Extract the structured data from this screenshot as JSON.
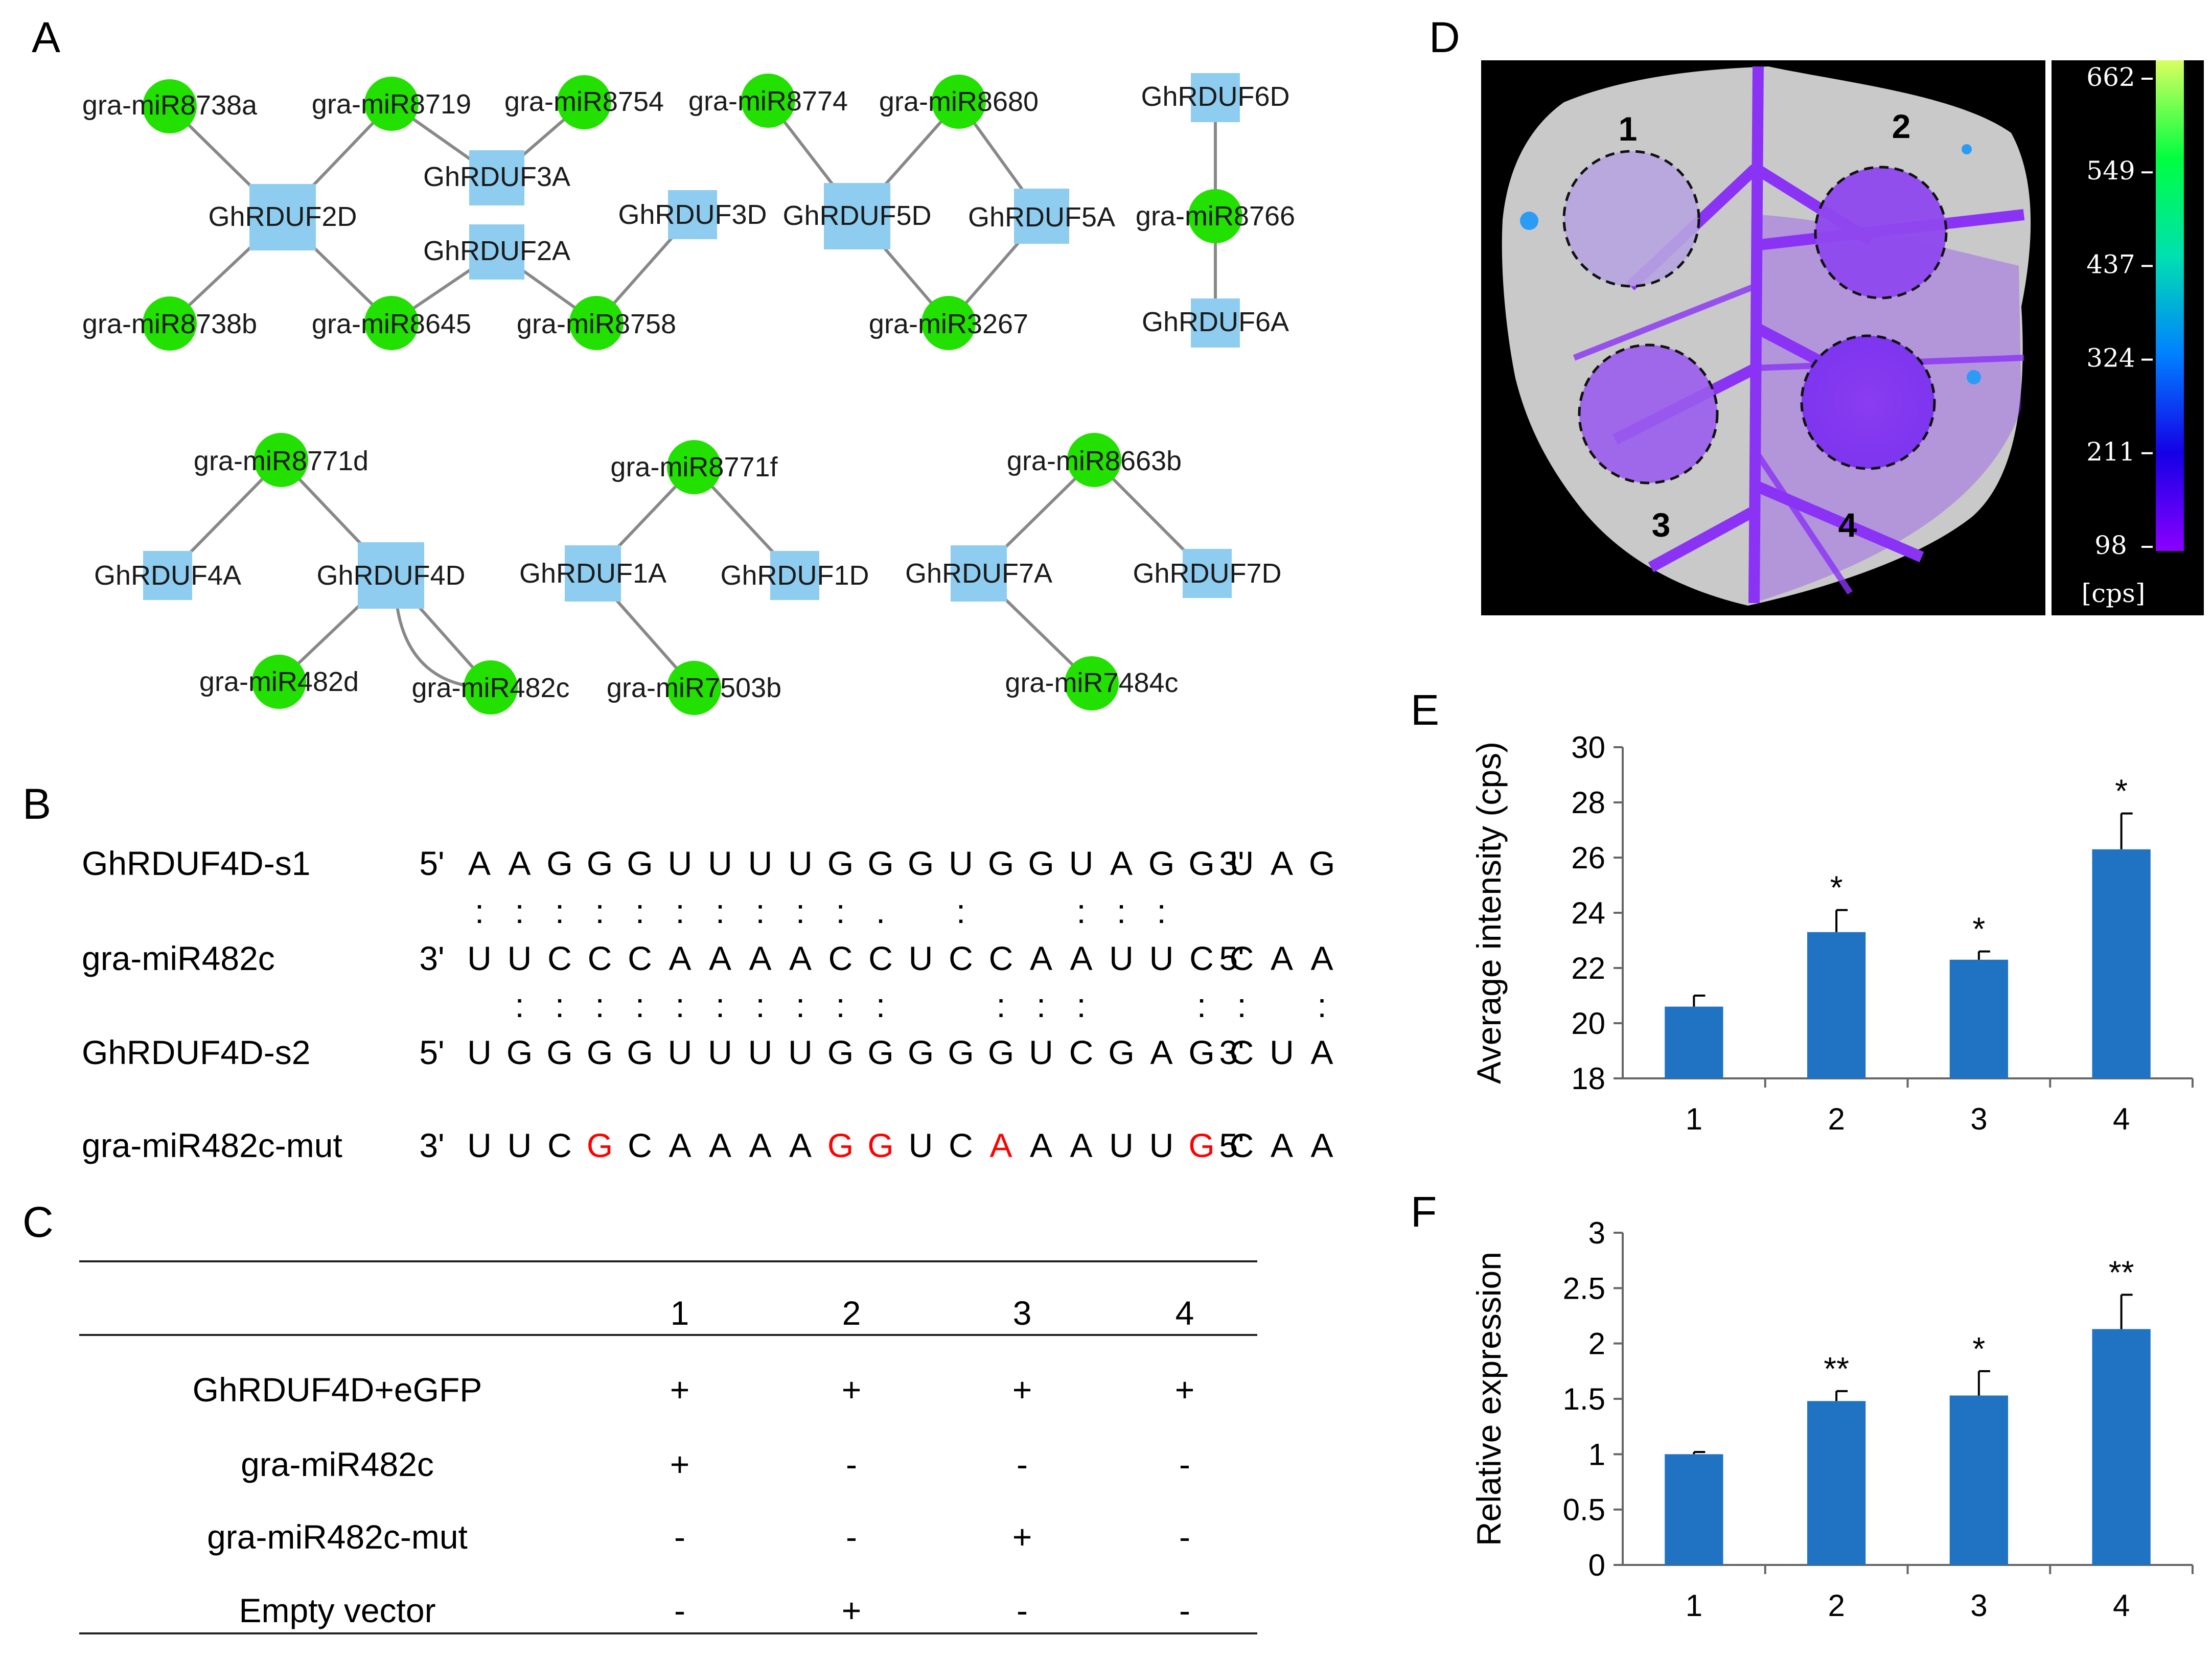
{
  "panel_labels": {
    "a": "A",
    "b": "B",
    "c": "C",
    "d": "D",
    "e": "E",
    "f": "F"
  },
  "network": {
    "colors": {
      "mirna_node": "#22e000",
      "gene_node": "#8ecdf0",
      "edge": "#888888"
    },
    "nodes": [
      {
        "id": "m8738a",
        "type": "mirna",
        "label": "gra-miR8738a"
      },
      {
        "id": "m8719",
        "type": "mirna",
        "label": "gra-miR8719"
      },
      {
        "id": "m8754",
        "type": "mirna",
        "label": "gra-miR8754"
      },
      {
        "id": "m8774",
        "type": "mirna",
        "label": "gra-miR8774"
      },
      {
        "id": "m8680",
        "type": "mirna",
        "label": "gra-miR8680"
      },
      {
        "id": "g6D",
        "type": "gene",
        "label": "GhRDUF6D"
      },
      {
        "id": "g2D",
        "type": "gene",
        "label": "GhRDUF2D"
      },
      {
        "id": "g3A",
        "type": "gene",
        "label": "GhRDUF3A"
      },
      {
        "id": "g2A",
        "type": "gene",
        "label": "GhRDUF2A"
      },
      {
        "id": "g3D",
        "type": "gene",
        "label": "GhRDUF3D"
      },
      {
        "id": "g5D",
        "type": "gene",
        "label": "GhRDUF5D"
      },
      {
        "id": "g5A",
        "type": "gene",
        "label": "GhRDUF5A"
      },
      {
        "id": "m8766",
        "type": "mirna",
        "label": "gra-miR8766"
      },
      {
        "id": "m8738b",
        "type": "mirna",
        "label": "gra-miR8738b"
      },
      {
        "id": "m8645",
        "type": "mirna",
        "label": "gra-miR8645"
      },
      {
        "id": "m8758",
        "type": "mirna",
        "label": "gra-miR8758"
      },
      {
        "id": "m3267",
        "type": "mirna",
        "label": "gra-miR3267"
      },
      {
        "id": "g6A",
        "type": "gene",
        "label": "GhRDUF6A"
      },
      {
        "id": "m8771d",
        "type": "mirna",
        "label": "gra-miR8771d"
      },
      {
        "id": "m8771f",
        "type": "mirna",
        "label": "gra-miR8771f"
      },
      {
        "id": "m8663b",
        "type": "mirna",
        "label": "gra-miR8663b"
      },
      {
        "id": "g4A",
        "type": "gene",
        "label": "GhRDUF4A"
      },
      {
        "id": "g4D",
        "type": "gene",
        "label": "GhRDUF4D"
      },
      {
        "id": "g1A",
        "type": "gene",
        "label": "GhRDUF1A"
      },
      {
        "id": "g1D",
        "type": "gene",
        "label": "GhRDUF1D"
      },
      {
        "id": "g7A",
        "type": "gene",
        "label": "GhRDUF7A"
      },
      {
        "id": "g7D",
        "type": "gene",
        "label": "GhRDUF7D"
      },
      {
        "id": "m482d",
        "type": "mirna",
        "label": "gra-miR482d"
      },
      {
        "id": "m482c",
        "type": "mirna",
        "label": "gra-miR482c"
      },
      {
        "id": "m7503b",
        "type": "mirna",
        "label": "gra-miR7503b"
      },
      {
        "id": "m7484c",
        "type": "mirna",
        "label": "gra-miR7484c"
      }
    ],
    "edges": [
      [
        "m8738a",
        "g2D"
      ],
      [
        "m8719",
        "g2D"
      ],
      [
        "m8738b",
        "g2D"
      ],
      [
        "m8645",
        "g2D"
      ],
      [
        "m8719",
        "g3A"
      ],
      [
        "m8754",
        "g3A"
      ],
      [
        "m8645",
        "g2A"
      ],
      [
        "m8758",
        "g2A"
      ],
      [
        "m8758",
        "g3D"
      ],
      [
        "m8774",
        "g5D"
      ],
      [
        "m8680",
        "g5D"
      ],
      [
        "m3267",
        "g5D"
      ],
      [
        "m8680",
        "g5A"
      ],
      [
        "m3267",
        "g5A"
      ],
      [
        "g6D",
        "m8766"
      ],
      [
        "m8766",
        "g6A"
      ],
      [
        "m8771d",
        "g4A"
      ],
      [
        "m8771d",
        "g4D"
      ],
      [
        "m482d",
        "g4D"
      ],
      [
        "m482c",
        "g4D"
      ],
      [
        "m8771f",
        "g1A"
      ],
      [
        "m8771f",
        "g1D"
      ],
      [
        "m7503b",
        "g1A"
      ],
      [
        "m8663b",
        "g7A"
      ],
      [
        "m8663b",
        "g7D"
      ],
      [
        "m7484c",
        "g7A"
      ]
    ]
  },
  "alignment": {
    "rows": [
      {
        "name": "GhRDUF4D-s1",
        "end5": "5'",
        "end3": "3'",
        "bases": [
          "A",
          "A",
          "G",
          "G",
          "G",
          "U",
          "U",
          "U",
          "U",
          "G",
          "G",
          "G",
          "U",
          "G",
          "G",
          "U",
          "A",
          "G",
          "G",
          "U",
          "A",
          "G"
        ],
        "mut_positions": []
      },
      {
        "name": "gra-miR482c",
        "end5": "3'",
        "end3": "5'",
        "bases": [
          "U",
          "U",
          "C",
          "C",
          "C",
          "A",
          "A",
          "A",
          "A",
          "C",
          "C",
          "U",
          "C",
          "C",
          "A",
          "A",
          "U",
          "U",
          "C",
          "C",
          "A",
          "A"
        ],
        "mut_positions": []
      },
      {
        "name": "GhRDUF4D-s2",
        "end5": "5'",
        "end3": "3'",
        "bases": [
          "U",
          "G",
          "G",
          "G",
          "G",
          "U",
          "U",
          "U",
          "U",
          "G",
          "G",
          "G",
          "G",
          "G",
          "U",
          "C",
          "G",
          "A",
          "G",
          "C",
          "U",
          "A"
        ],
        "mut_positions": []
      },
      {
        "name": "gra-miR482c-mut",
        "end5": "3'",
        "end3": "5'",
        "bases": [
          "U",
          "U",
          "C",
          "G",
          "C",
          "A",
          "A",
          "A",
          "A",
          "G",
          "G",
          "U",
          "C",
          "A",
          "A",
          "A",
          "U",
          "U",
          "G",
          "C",
          "A",
          "A"
        ],
        "mut_positions": [
          3,
          9,
          10,
          13,
          18
        ]
      }
    ],
    "pairing": [
      [
        ":",
        ":",
        ":",
        ":",
        ":",
        ":",
        ":",
        ":",
        ":",
        ":",
        ".",
        "",
        ":",
        "",
        "",
        ":",
        ":",
        ":",
        "",
        "",
        "",
        ""
      ],
      [
        "",
        ":",
        ":",
        ":",
        ":",
        ":",
        ":",
        ":",
        ":",
        ":",
        ":",
        "",
        "",
        ":",
        ":",
        ":",
        "",
        "",
        ":",
        ":",
        "",
        ":"
      ]
    ]
  },
  "table": {
    "columns": [
      "1",
      "2",
      "3",
      "4"
    ],
    "rows": [
      {
        "label": "GhRDUF4D+eGFP",
        "values": [
          "+",
          "+",
          "+",
          "+"
        ]
      },
      {
        "label": "gra-miR482c",
        "values": [
          "+",
          "-",
          "-",
          "-"
        ]
      },
      {
        "label": "gra-miR482c-mut",
        "values": [
          "-",
          "-",
          "+",
          "-"
        ]
      },
      {
        "label": "Empty vector",
        "values": [
          "-",
          "+",
          "-",
          "-"
        ]
      }
    ]
  },
  "leaf_image": {
    "region_labels": [
      "1",
      "2",
      "3",
      "4"
    ],
    "scale_ticks": [
      "662",
      "549",
      "437",
      "324",
      "211",
      "98"
    ],
    "scale_unit": "[cps]",
    "colors": {
      "background": "#000000",
      "leaf": "#c8c8c8",
      "signal": "#8a33f5"
    }
  },
  "chart_data": [
    {
      "type": "bar",
      "panel": "E",
      "categories": [
        "1",
        "2",
        "3",
        "4"
      ],
      "values": [
        20.6,
        23.3,
        22.3,
        26.3
      ],
      "errors": [
        0.4,
        0.8,
        0.3,
        1.3
      ],
      "significance": [
        "",
        "*",
        "*",
        "*"
      ],
      "ylabel": "Average intensity (cps)",
      "xlabel": "",
      "ylim": [
        18,
        30
      ],
      "yticks": [
        "18",
        "20",
        "22",
        "24",
        "26",
        "28",
        "30"
      ],
      "bar_color": "#1f73c2"
    },
    {
      "type": "bar",
      "panel": "F",
      "categories": [
        "1",
        "2",
        "3",
        "4"
      ],
      "values": [
        1.0,
        1.48,
        1.53,
        2.13
      ],
      "errors": [
        0.02,
        0.09,
        0.22,
        0.31
      ],
      "significance": [
        "",
        "**",
        "*",
        "**"
      ],
      "ylabel": "Relative expression",
      "xlabel": "",
      "ylim": [
        0,
        3
      ],
      "yticks": [
        "0",
        "0.5",
        "1",
        "1.5",
        "2",
        "2.5",
        "3"
      ],
      "bar_color": "#1f73c2"
    }
  ]
}
